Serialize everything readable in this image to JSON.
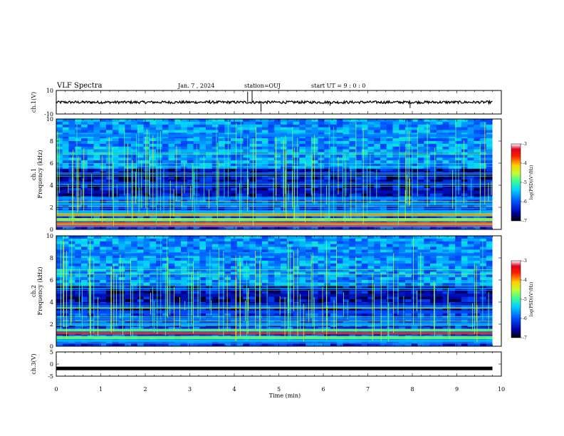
{
  "header": {
    "title": "VLF Spectra",
    "date": "Jan. 7 , 2024",
    "station": "station=OUJ",
    "start": "start UT =  9 : 0 : 0"
  },
  "chart_data": [
    {
      "panel": "ch1-voltage",
      "type": "line",
      "ylabel": "ch.1(V)",
      "ylim": [
        -10,
        10
      ],
      "yticks": [
        "10",
        "-10"
      ],
      "x_range_min": [
        0,
        9.8
      ],
      "baseline": 0,
      "spikes": [
        {
          "x": 4.3,
          "y": 9
        },
        {
          "x": 4.4,
          "y": 10
        },
        {
          "x": 4.6,
          "y": -8
        },
        {
          "x": 3.45,
          "y": 2
        },
        {
          "x": 6.15,
          "y": -3
        },
        {
          "x": 7.95,
          "y": -5
        }
      ]
    },
    {
      "panel": "ch1-spectrogram",
      "type": "heatmap",
      "ylabel": "Frequency (kHz)",
      "channel_label": "ch.1",
      "ylim": [
        0,
        10
      ],
      "yticks": [
        "0",
        "2",
        "4",
        "6",
        "8",
        "10"
      ],
      "colorbar": {
        "label": "log(PSD)(V²/Hz)",
        "range": [
          -7,
          -3
        ],
        "ticks": [
          "-3",
          "-4",
          "-5",
          "-6",
          "-7"
        ]
      },
      "bands": [
        {
          "f": 0.35,
          "level": -3.2
        },
        {
          "f": 0.55,
          "level": -3.8
        },
        {
          "f": 0.9,
          "level": -4.6
        },
        {
          "f": 1.35,
          "level": -4.0
        },
        {
          "f": 1.6,
          "level": -5.5
        },
        {
          "f": 2.3,
          "level": -5.6
        },
        {
          "f": 2.8,
          "level": -5.7
        },
        {
          "f": 3.4,
          "level": -6.5
        },
        {
          "f": 4.2,
          "level": -6.2
        },
        {
          "f": 5.0,
          "level": -6.6
        },
        {
          "f": 8.5,
          "level": -5.8
        }
      ]
    },
    {
      "panel": "ch2-spectrogram",
      "type": "heatmap",
      "ylabel": "Frequency (kHz)",
      "channel_label": "ch.2",
      "ylim": [
        0,
        10
      ],
      "yticks": [
        "0",
        "2",
        "4",
        "6",
        "8",
        "10"
      ],
      "colorbar": {
        "label": "log(PSD)(V²/Hz)",
        "range": [
          -7,
          -3
        ],
        "ticks": [
          "-3",
          "-4",
          "-5",
          "-6",
          "-7"
        ]
      },
      "bands": [
        {
          "f": 0.5,
          "level": -5.5
        },
        {
          "f": 0.8,
          "level": -4.8
        },
        {
          "f": 1.2,
          "level": -3.6
        },
        {
          "f": 1.45,
          "level": -4.8
        },
        {
          "f": 2.0,
          "level": -5.6
        },
        {
          "f": 2.5,
          "level": -5.8
        },
        {
          "f": 3.1,
          "level": -6.0
        },
        {
          "f": 3.8,
          "level": -6.3
        },
        {
          "f": 4.6,
          "level": -6.5
        },
        {
          "f": 8.3,
          "level": -5.9
        }
      ]
    },
    {
      "panel": "ch3-voltage",
      "type": "line",
      "ylabel": "ch.3(V)",
      "ylim": [
        -5,
        5
      ],
      "yticks": [
        "5",
        "0",
        "-5"
      ],
      "x_range_min": [
        0,
        9.8
      ],
      "baseline": -1.8
    }
  ],
  "xaxis": {
    "label": "Time (min)",
    "range": [
      0,
      10
    ],
    "ticks": [
      "0",
      "1",
      "2",
      "3",
      "4",
      "5",
      "6",
      "7",
      "8",
      "9",
      "10"
    ]
  },
  "colors": {
    "colormap": [
      "#000000",
      "#00007a",
      "#0000e0",
      "#005aff",
      "#00c8ff",
      "#32ffb0",
      "#b4ff3c",
      "#ffdc00",
      "#ff3c00",
      "#dc0000",
      "#ffffff"
    ]
  }
}
